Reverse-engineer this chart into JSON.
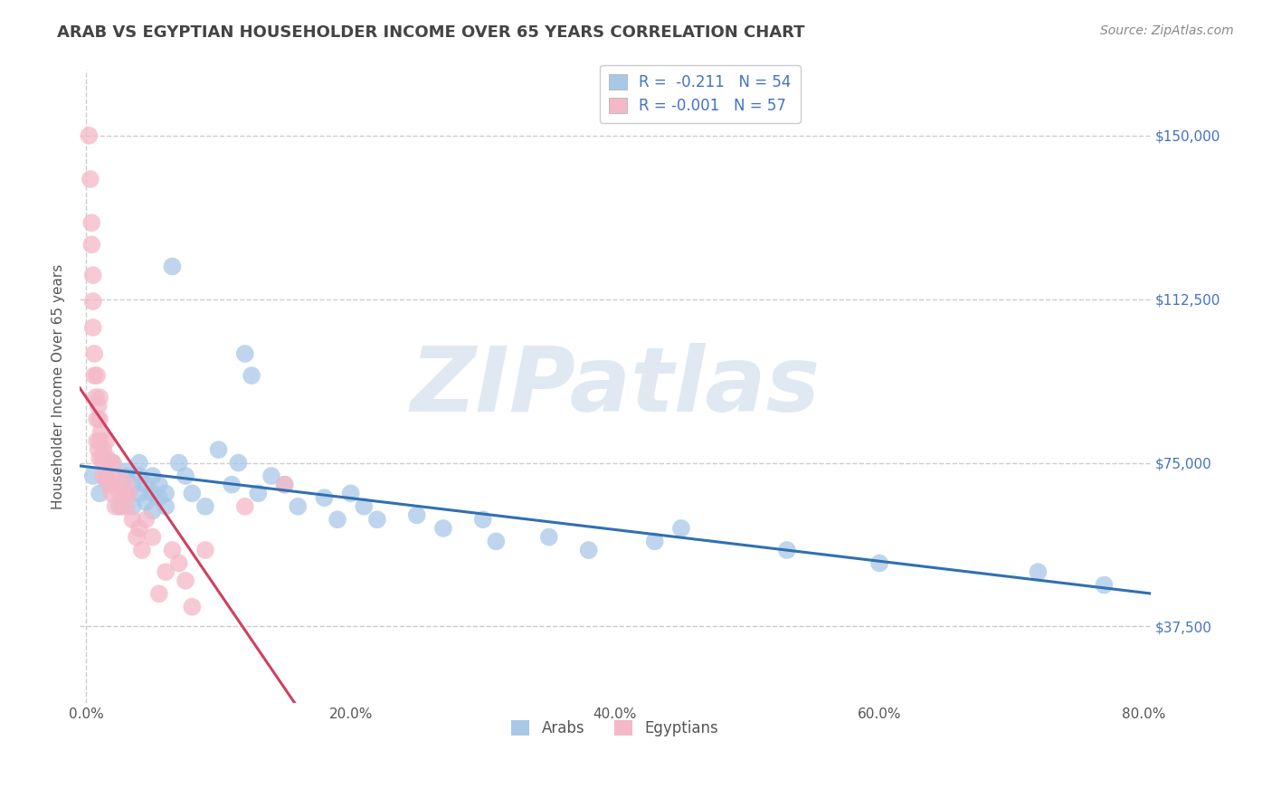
{
  "title": "ARAB VS EGYPTIAN HOUSEHOLDER INCOME OVER 65 YEARS CORRELATION CHART",
  "source": "Source: ZipAtlas.com",
  "ylabel": "Householder Income Over 65 years",
  "xlim": [
    -0.005,
    0.805
  ],
  "ylim": [
    20000,
    165000
  ],
  "yticks": [
    37500,
    75000,
    112500,
    150000
  ],
  "ytick_labels": [
    "$37,500",
    "$75,000",
    "$112,500",
    "$150,000"
  ],
  "xticks": [
    0.0,
    0.2,
    0.4,
    0.6,
    0.8
  ],
  "xtick_labels": [
    "0.0%",
    "20.0%",
    "40.0%",
    "60.0%",
    "80.0%"
  ],
  "arab_color": "#a8c8e8",
  "egypt_color": "#f4b8c8",
  "arab_line_color": "#3070b0",
  "egypt_line_color": "#d04060",
  "arab_R": -0.211,
  "arab_N": 54,
  "egypt_R": -0.001,
  "egypt_N": 57,
  "background_color": "#ffffff",
  "grid_color": "#cccccc",
  "watermark": "ZIPatlas",
  "arab_x": [
    0.005,
    0.01,
    0.015,
    0.02,
    0.025,
    0.025,
    0.03,
    0.03,
    0.03,
    0.035,
    0.035,
    0.04,
    0.04,
    0.04,
    0.045,
    0.045,
    0.05,
    0.05,
    0.05,
    0.055,
    0.055,
    0.06,
    0.06,
    0.065,
    0.07,
    0.075,
    0.08,
    0.09,
    0.1,
    0.11,
    0.115,
    0.12,
    0.125,
    0.13,
    0.14,
    0.15,
    0.16,
    0.18,
    0.19,
    0.2,
    0.21,
    0.22,
    0.25,
    0.27,
    0.3,
    0.31,
    0.35,
    0.38,
    0.43,
    0.45,
    0.53,
    0.6,
    0.72,
    0.77
  ],
  "arab_y": [
    72000,
    68000,
    71000,
    75000,
    70000,
    65000,
    73000,
    68000,
    72000,
    70000,
    65000,
    68000,
    72000,
    75000,
    66000,
    70000,
    68000,
    72000,
    64000,
    67000,
    70000,
    65000,
    68000,
    120000,
    75000,
    72000,
    68000,
    65000,
    78000,
    70000,
    75000,
    100000,
    95000,
    68000,
    72000,
    70000,
    65000,
    67000,
    62000,
    68000,
    65000,
    62000,
    63000,
    60000,
    62000,
    57000,
    58000,
    55000,
    57000,
    60000,
    55000,
    52000,
    50000,
    47000
  ],
  "egypt_x": [
    0.002,
    0.003,
    0.004,
    0.004,
    0.005,
    0.005,
    0.005,
    0.006,
    0.006,
    0.007,
    0.008,
    0.008,
    0.008,
    0.009,
    0.009,
    0.01,
    0.01,
    0.01,
    0.01,
    0.011,
    0.012,
    0.013,
    0.013,
    0.014,
    0.015,
    0.015,
    0.016,
    0.017,
    0.018,
    0.018,
    0.019,
    0.02,
    0.02,
    0.022,
    0.023,
    0.025,
    0.025,
    0.027,
    0.028,
    0.03,
    0.03,
    0.032,
    0.035,
    0.038,
    0.04,
    0.042,
    0.045,
    0.05,
    0.055,
    0.06,
    0.065,
    0.07,
    0.075,
    0.08,
    0.09,
    0.12,
    0.15
  ],
  "egypt_y": [
    150000,
    140000,
    130000,
    125000,
    118000,
    112000,
    106000,
    100000,
    95000,
    90000,
    85000,
    80000,
    95000,
    88000,
    78000,
    90000,
    85000,
    80000,
    76000,
    82000,
    76000,
    78000,
    72000,
    75000,
    80000,
    72000,
    76000,
    70000,
    75000,
    72000,
    68000,
    70000,
    75000,
    65000,
    70000,
    68000,
    72000,
    65000,
    68000,
    70000,
    65000,
    68000,
    62000,
    58000,
    60000,
    55000,
    62000,
    58000,
    45000,
    50000,
    55000,
    52000,
    48000,
    42000,
    55000,
    65000,
    70000
  ]
}
